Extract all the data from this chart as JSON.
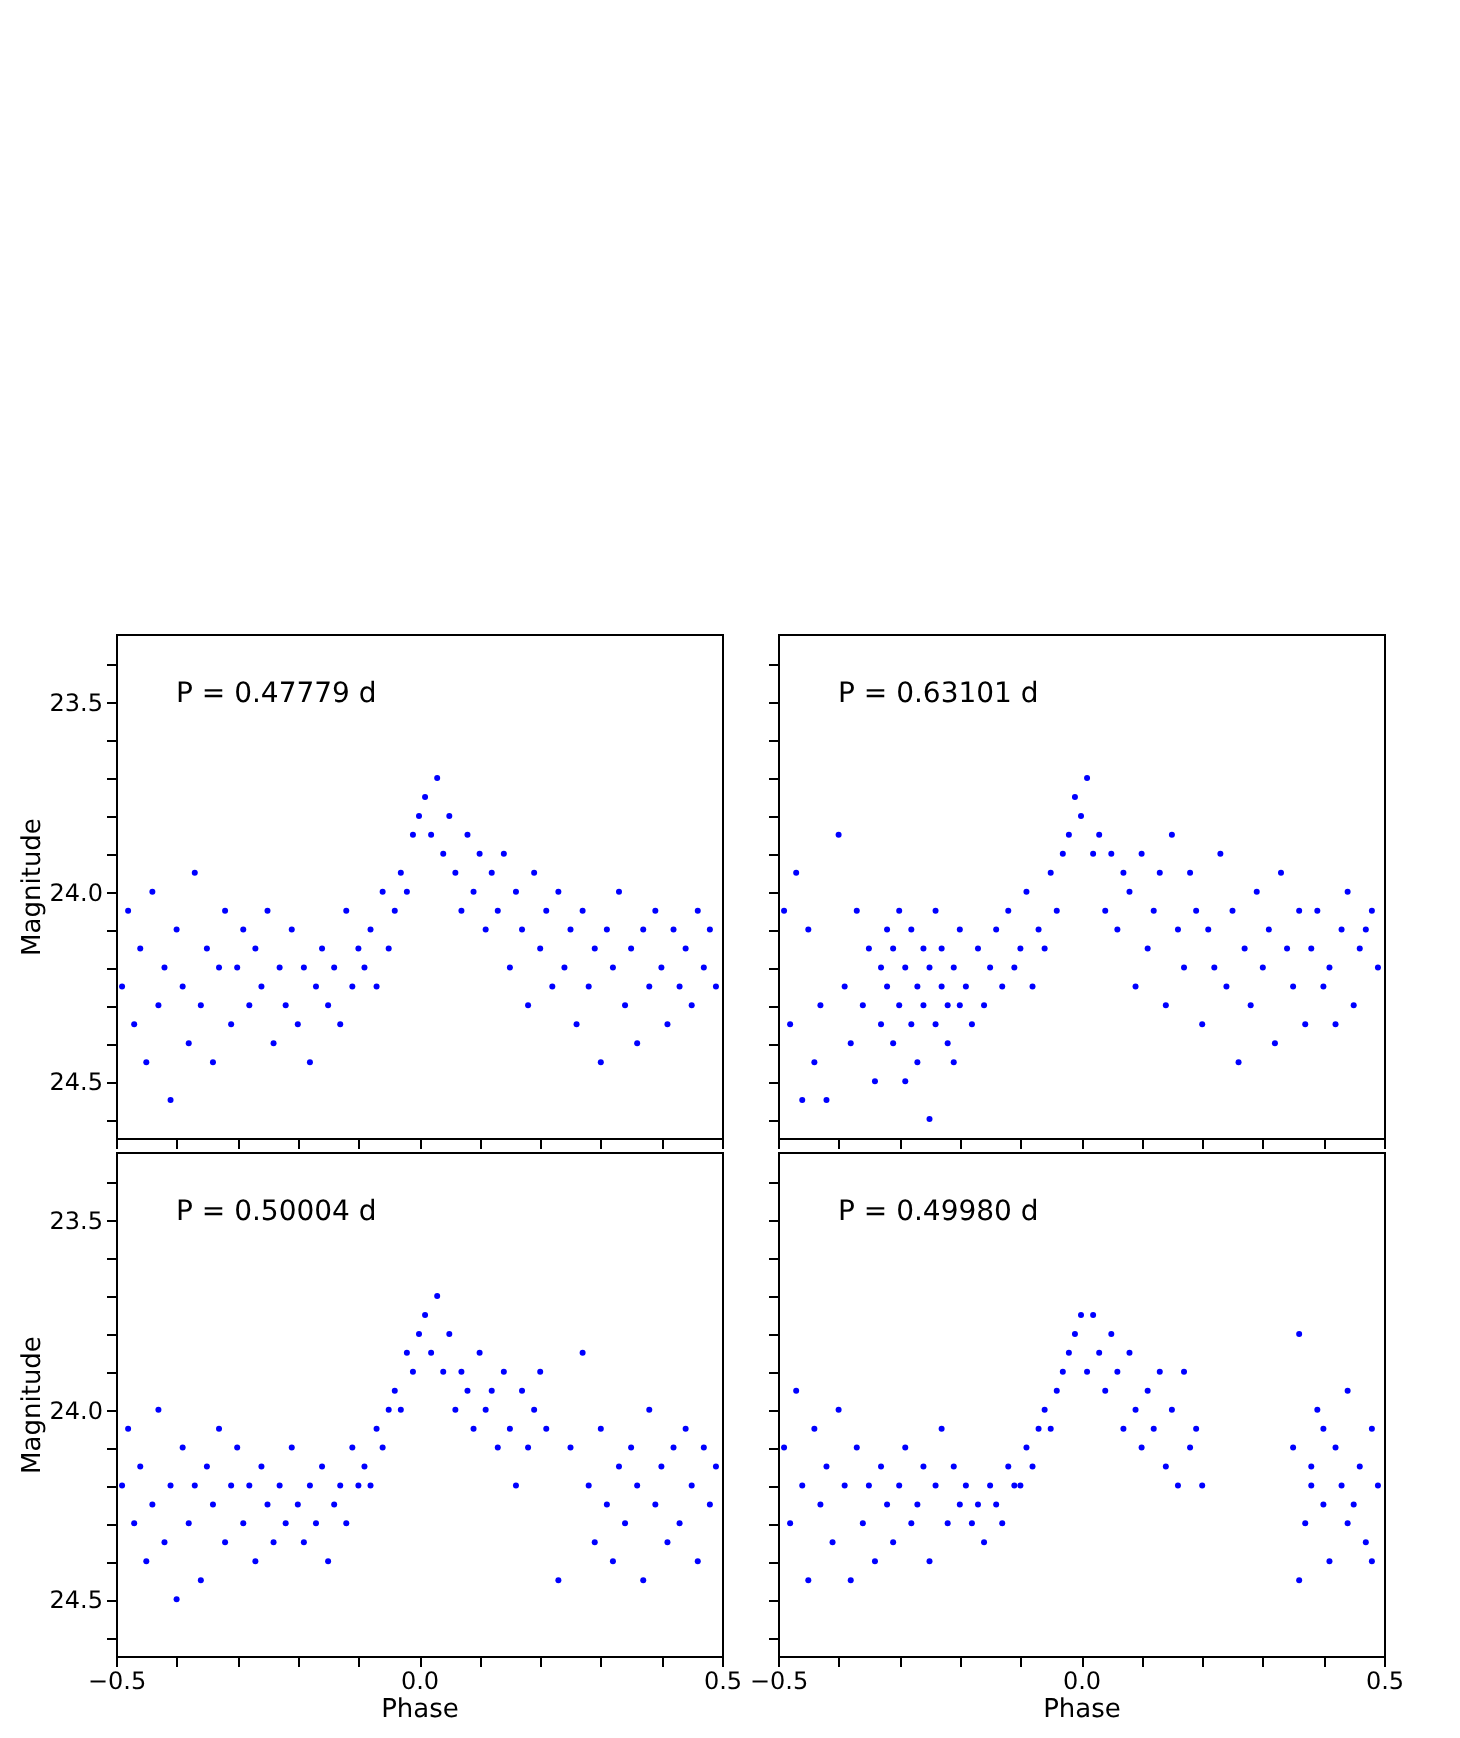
{
  "chart_data": [
    {
      "type": "scatter",
      "ylabel": "Magnitude",
      "annotations": [
        "P = 0.47779 d"
      ],
      "xlim": [
        -0.5,
        0.5
      ],
      "ylim": [
        24.65,
        23.32
      ],
      "tick_labels": "y",
      "marker": "circle",
      "xticks": [
        {
          "value": -0.5,
          "label": null
        },
        {
          "value": -0.4,
          "label": null
        },
        {
          "value": -0.3,
          "label": null
        },
        {
          "value": -0.2,
          "label": null
        },
        {
          "value": -0.1,
          "label": null
        },
        {
          "value": 0,
          "label": null
        },
        {
          "value": 0.1,
          "label": null
        },
        {
          "value": 0.2,
          "label": null
        },
        {
          "value": 0.3,
          "label": null
        },
        {
          "value": 0.4,
          "label": null
        },
        {
          "value": 0.5,
          "label": null
        }
      ],
      "yticks": [
        {
          "value": 23.4,
          "label": null
        },
        {
          "value": 23.5,
          "label": "23.5"
        },
        {
          "value": 23.6,
          "label": null
        },
        {
          "value": 23.7,
          "label": null
        },
        {
          "value": 23.8,
          "label": null
        },
        {
          "value": 23.9,
          "label": null
        },
        {
          "value": 24,
          "label": "24.0"
        },
        {
          "value": 24.1,
          "label": null
        },
        {
          "value": 24.2,
          "label": null
        },
        {
          "value": 24.3,
          "label": null
        },
        {
          "value": 24.4,
          "label": null
        },
        {
          "value": 24.5,
          "label": "24.5"
        },
        {
          "value": 24.6,
          "label": null
        }
      ],
      "series": [
        {
          "color": "#0000ff",
          "x": [
            -0.49,
            -0.48,
            -0.47,
            -0.46,
            -0.45,
            -0.44,
            -0.43,
            -0.42,
            -0.41,
            -0.4,
            -0.39,
            -0.38,
            -0.37,
            -0.36,
            -0.35,
            -0.34,
            -0.33,
            -0.32,
            -0.31,
            -0.3,
            -0.29,
            -0.28,
            -0.27,
            -0.26,
            -0.25,
            -0.24,
            -0.23,
            -0.22,
            -0.21,
            -0.2,
            -0.19,
            -0.18,
            -0.17,
            -0.16,
            -0.15,
            -0.14,
            -0.13,
            -0.12,
            -0.11,
            -0.1,
            -0.09,
            -0.08,
            -0.07,
            -0.06,
            -0.05,
            -0.04,
            -0.03,
            -0.02,
            -0.01,
            0.0,
            0.01,
            0.02,
            0.03,
            0.04,
            0.05,
            0.06,
            0.07,
            0.08,
            0.09,
            0.1,
            0.11,
            0.12,
            0.13,
            0.14,
            0.15,
            0.16,
            0.17,
            0.18,
            0.19,
            0.2,
            0.21,
            0.22,
            0.23,
            0.24,
            0.25,
            0.26,
            0.27,
            0.28,
            0.29,
            0.3,
            0.31,
            0.32,
            0.33,
            0.34,
            0.35,
            0.36,
            0.37,
            0.38,
            0.39,
            0.4,
            0.41,
            0.42,
            0.43,
            0.44,
            0.45,
            0.46,
            0.47,
            0.48,
            0.49
          ],
          "values": [
            24.25,
            24.05,
            24.35,
            24.15,
            24.45,
            24.0,
            24.3,
            24.2,
            24.55,
            24.1,
            24.25,
            24.4,
            23.95,
            24.3,
            24.15,
            24.45,
            24.2,
            24.05,
            24.35,
            24.2,
            24.1,
            24.3,
            24.15,
            24.25,
            24.05,
            24.4,
            24.2,
            24.3,
            24.1,
            24.35,
            24.2,
            24.45,
            24.25,
            24.15,
            24.3,
            24.2,
            24.35,
            24.05,
            24.25,
            24.15,
            24.2,
            24.1,
            24.25,
            24.0,
            24.15,
            24.05,
            23.95,
            24.0,
            23.85,
            23.8,
            23.75,
            23.85,
            23.7,
            23.9,
            23.8,
            23.95,
            24.05,
            23.85,
            24.0,
            23.9,
            24.1,
            23.95,
            24.05,
            23.9,
            24.2,
            24.0,
            24.1,
            24.3,
            23.95,
            24.15,
            24.05,
            24.25,
            24.0,
            24.2,
            24.1,
            24.35,
            24.05,
            24.25,
            24.15,
            24.45,
            24.1,
            24.2,
            24.0,
            24.3,
            24.15,
            24.4,
            24.1,
            24.25,
            24.05,
            24.2,
            24.35,
            24.1,
            24.25,
            24.15,
            24.3,
            24.05,
            24.2,
            24.1,
            24.25
          ]
        }
      ]
    },
    {
      "type": "scatter",
      "annotations": [
        "P = 0.63101 d"
      ],
      "xlim": [
        -0.5,
        0.5
      ],
      "ylim": [
        24.65,
        23.32
      ],
      "tick_labels": false,
      "marker": "circle",
      "xticks": [
        {
          "value": -0.5,
          "label": null
        },
        {
          "value": -0.4,
          "label": null
        },
        {
          "value": -0.3,
          "label": null
        },
        {
          "value": -0.2,
          "label": null
        },
        {
          "value": -0.1,
          "label": null
        },
        {
          "value": 0,
          "label": null
        },
        {
          "value": 0.1,
          "label": null
        },
        {
          "value": 0.2,
          "label": null
        },
        {
          "value": 0.3,
          "label": null
        },
        {
          "value": 0.4,
          "label": null
        },
        {
          "value": 0.5,
          "label": null
        }
      ],
      "yticks": [
        {
          "value": 23.4,
          "label": null
        },
        {
          "value": 23.5,
          "label": null
        },
        {
          "value": 23.6,
          "label": null
        },
        {
          "value": 23.7,
          "label": null
        },
        {
          "value": 23.8,
          "label": null
        },
        {
          "value": 23.9,
          "label": null
        },
        {
          "value": 24,
          "label": null
        },
        {
          "value": 24.1,
          "label": null
        },
        {
          "value": 24.2,
          "label": null
        },
        {
          "value": 24.3,
          "label": null
        },
        {
          "value": 24.4,
          "label": null
        },
        {
          "value": 24.5,
          "label": null
        },
        {
          "value": 24.6,
          "label": null
        }
      ],
      "series": [
        {
          "color": "#0000ff",
          "x": [
            -0.49,
            -0.48,
            -0.47,
            -0.46,
            -0.45,
            -0.44,
            -0.43,
            -0.42,
            -0.4,
            -0.39,
            -0.38,
            -0.37,
            -0.36,
            -0.35,
            -0.34,
            -0.33,
            -0.33,
            -0.32,
            -0.32,
            -0.31,
            -0.31,
            -0.3,
            -0.3,
            -0.29,
            -0.29,
            -0.28,
            -0.28,
            -0.27,
            -0.27,
            -0.26,
            -0.26,
            -0.25,
            -0.25,
            -0.24,
            -0.24,
            -0.23,
            -0.23,
            -0.22,
            -0.22,
            -0.21,
            -0.21,
            -0.2,
            -0.2,
            -0.19,
            -0.18,
            -0.17,
            -0.16,
            -0.15,
            -0.14,
            -0.13,
            -0.12,
            -0.11,
            -0.1,
            -0.09,
            -0.08,
            -0.07,
            -0.06,
            -0.05,
            -0.04,
            -0.03,
            -0.02,
            -0.01,
            0.0,
            0.01,
            0.02,
            0.03,
            0.04,
            0.05,
            0.06,
            0.07,
            0.08,
            0.09,
            0.1,
            0.11,
            0.12,
            0.13,
            0.14,
            0.15,
            0.16,
            0.17,
            0.18,
            0.19,
            0.2,
            0.21,
            0.22,
            0.23,
            0.24,
            0.25,
            0.26,
            0.27,
            0.28,
            0.29,
            0.3,
            0.31,
            0.32,
            0.33,
            0.34,
            0.35,
            0.36,
            0.37,
            0.38,
            0.39,
            0.4,
            0.41,
            0.42,
            0.43,
            0.44,
            0.45,
            0.46,
            0.47,
            0.48,
            0.49
          ],
          "values": [
            24.05,
            24.35,
            23.95,
            24.55,
            24.1,
            24.45,
            24.3,
            24.55,
            23.85,
            24.25,
            24.4,
            24.05,
            24.3,
            24.15,
            24.5,
            24.2,
            24.35,
            24.1,
            24.25,
            24.4,
            24.15,
            24.3,
            24.05,
            24.2,
            24.5,
            24.1,
            24.35,
            24.25,
            24.45,
            24.15,
            24.3,
            24.2,
            24.6,
            24.05,
            24.35,
            24.25,
            24.15,
            24.4,
            24.3,
            24.2,
            24.45,
            24.1,
            24.3,
            24.25,
            24.35,
            24.15,
            24.3,
            24.2,
            24.1,
            24.25,
            24.05,
            24.2,
            24.15,
            24.0,
            24.25,
            24.1,
            24.15,
            23.95,
            24.05,
            23.9,
            23.85,
            23.75,
            23.8,
            23.7,
            23.9,
            23.85,
            24.05,
            23.9,
            24.1,
            23.95,
            24.0,
            24.25,
            23.9,
            24.15,
            24.05,
            23.95,
            24.3,
            23.85,
            24.1,
            24.2,
            23.95,
            24.05,
            24.35,
            24.1,
            24.2,
            23.9,
            24.25,
            24.05,
            24.45,
            24.15,
            24.3,
            24.0,
            24.2,
            24.1,
            24.4,
            23.95,
            24.15,
            24.25,
            24.05,
            24.35,
            24.15,
            24.05,
            24.25,
            24.2,
            24.35,
            24.1,
            24.0,
            24.3,
            24.15,
            24.1,
            24.05,
            24.2
          ]
        }
      ]
    },
    {
      "type": "scatter",
      "xlabel": "Phase",
      "ylabel": "Magnitude",
      "annotations": [
        "P = 0.50004 d"
      ],
      "xlim": [
        -0.5,
        0.5
      ],
      "ylim": [
        24.65,
        23.32
      ],
      "marker": "circle",
      "xticks": [
        {
          "value": -0.5,
          "label": "−0.5"
        },
        {
          "value": -0.4,
          "label": null
        },
        {
          "value": -0.3,
          "label": null
        },
        {
          "value": -0.2,
          "label": null
        },
        {
          "value": -0.1,
          "label": null
        },
        {
          "value": 0,
          "label": "0.0"
        },
        {
          "value": 0.1,
          "label": null
        },
        {
          "value": 0.2,
          "label": null
        },
        {
          "value": 0.3,
          "label": null
        },
        {
          "value": 0.4,
          "label": null
        },
        {
          "value": 0.5,
          "label": "0.5"
        }
      ],
      "yticks": [
        {
          "value": 23.4,
          "label": null
        },
        {
          "value": 23.5,
          "label": "23.5"
        },
        {
          "value": 23.6,
          "label": null
        },
        {
          "value": 23.7,
          "label": null
        },
        {
          "value": 23.8,
          "label": null
        },
        {
          "value": 23.9,
          "label": null
        },
        {
          "value": 24,
          "label": "24.0"
        },
        {
          "value": 24.1,
          "label": null
        },
        {
          "value": 24.2,
          "label": null
        },
        {
          "value": 24.3,
          "label": null
        },
        {
          "value": 24.4,
          "label": null
        },
        {
          "value": 24.5,
          "label": "24.5"
        },
        {
          "value": 24.6,
          "label": null
        }
      ],
      "series": [
        {
          "color": "#0000ff",
          "x": [
            -0.49,
            -0.48,
            -0.47,
            -0.46,
            -0.45,
            -0.44,
            -0.43,
            -0.42,
            -0.41,
            -0.4,
            -0.39,
            -0.38,
            -0.37,
            -0.36,
            -0.35,
            -0.34,
            -0.33,
            -0.32,
            -0.31,
            -0.3,
            -0.29,
            -0.28,
            -0.27,
            -0.26,
            -0.25,
            -0.24,
            -0.23,
            -0.22,
            -0.21,
            -0.2,
            -0.19,
            -0.18,
            -0.17,
            -0.16,
            -0.15,
            -0.14,
            -0.13,
            -0.12,
            -0.11,
            -0.1,
            -0.09,
            -0.08,
            -0.07,
            -0.06,
            -0.05,
            -0.04,
            -0.03,
            -0.02,
            -0.01,
            0.0,
            0.01,
            0.02,
            0.03,
            0.04,
            0.05,
            0.06,
            0.07,
            0.08,
            0.09,
            0.1,
            0.11,
            0.12,
            0.13,
            0.14,
            0.15,
            0.16,
            0.17,
            0.18,
            0.19,
            0.2,
            0.21,
            0.23,
            0.25,
            0.27,
            0.28,
            0.29,
            0.3,
            0.31,
            0.32,
            0.33,
            0.34,
            0.35,
            0.36,
            0.37,
            0.38,
            0.39,
            0.4,
            0.41,
            0.42,
            0.43,
            0.44,
            0.45,
            0.46,
            0.47,
            0.48,
            0.49
          ],
          "values": [
            24.2,
            24.05,
            24.3,
            24.15,
            24.4,
            24.25,
            24.0,
            24.35,
            24.2,
            24.5,
            24.1,
            24.3,
            24.2,
            24.45,
            24.15,
            24.25,
            24.05,
            24.35,
            24.2,
            24.1,
            24.3,
            24.2,
            24.4,
            24.15,
            24.25,
            24.35,
            24.2,
            24.3,
            24.1,
            24.25,
            24.35,
            24.2,
            24.3,
            24.15,
            24.4,
            24.25,
            24.2,
            24.3,
            24.1,
            24.2,
            24.15,
            24.2,
            24.05,
            24.1,
            24.0,
            23.95,
            24.0,
            23.85,
            23.9,
            23.8,
            23.75,
            23.85,
            23.7,
            23.9,
            23.8,
            24.0,
            23.9,
            23.95,
            24.05,
            23.85,
            24.0,
            23.95,
            24.1,
            23.9,
            24.05,
            24.2,
            23.95,
            24.1,
            24.0,
            23.9,
            24.05,
            24.45,
            24.1,
            23.85,
            24.2,
            24.35,
            24.05,
            24.25,
            24.4,
            24.15,
            24.3,
            24.1,
            24.2,
            24.45,
            24.0,
            24.25,
            24.15,
            24.35,
            24.1,
            24.3,
            24.05,
            24.2,
            24.4,
            24.1,
            24.25,
            24.15
          ]
        }
      ]
    },
    {
      "type": "scatter",
      "xlabel": "Phase",
      "annotations": [
        "P = 0.49980 d"
      ],
      "xlim": [
        -0.5,
        0.5
      ],
      "ylim": [
        24.65,
        23.32
      ],
      "tick_labels": "x",
      "marker": "circle",
      "xticks": [
        {
          "value": -0.5,
          "label": "−0.5"
        },
        {
          "value": -0.4,
          "label": null
        },
        {
          "value": -0.3,
          "label": null
        },
        {
          "value": -0.2,
          "label": null
        },
        {
          "value": -0.1,
          "label": null
        },
        {
          "value": 0,
          "label": "0.0"
        },
        {
          "value": 0.1,
          "label": null
        },
        {
          "value": 0.2,
          "label": null
        },
        {
          "value": 0.3,
          "label": null
        },
        {
          "value": 0.4,
          "label": null
        },
        {
          "value": 0.5,
          "label": "0.5"
        }
      ],
      "yticks": [
        {
          "value": 23.4,
          "label": null
        },
        {
          "value": 23.5,
          "label": null
        },
        {
          "value": 23.6,
          "label": null
        },
        {
          "value": 23.7,
          "label": null
        },
        {
          "value": 23.8,
          "label": null
        },
        {
          "value": 23.9,
          "label": null
        },
        {
          "value": 24,
          "label": null
        },
        {
          "value": 24.1,
          "label": null
        },
        {
          "value": 24.2,
          "label": null
        },
        {
          "value": 24.3,
          "label": null
        },
        {
          "value": 24.4,
          "label": null
        },
        {
          "value": 24.5,
          "label": null
        },
        {
          "value": 24.6,
          "label": null
        }
      ],
      "series": [
        {
          "color": "#0000ff",
          "x": [
            -0.49,
            -0.48,
            -0.47,
            -0.46,
            -0.45,
            -0.44,
            -0.43,
            -0.42,
            -0.41,
            -0.4,
            -0.39,
            -0.38,
            -0.37,
            -0.36,
            -0.35,
            -0.34,
            -0.33,
            -0.32,
            -0.31,
            -0.3,
            -0.29,
            -0.28,
            -0.27,
            -0.26,
            -0.25,
            -0.24,
            -0.23,
            -0.22,
            -0.21,
            -0.2,
            -0.19,
            -0.18,
            -0.17,
            -0.16,
            -0.15,
            -0.14,
            -0.13,
            -0.12,
            -0.11,
            -0.1,
            -0.09,
            -0.08,
            -0.07,
            -0.06,
            -0.05,
            -0.04,
            -0.03,
            -0.02,
            -0.01,
            0.0,
            0.01,
            0.02,
            0.03,
            0.04,
            0.05,
            0.06,
            0.07,
            0.08,
            0.09,
            0.1,
            0.11,
            0.12,
            0.13,
            0.14,
            0.15,
            0.16,
            0.17,
            0.18,
            0.19,
            0.2,
            0.35,
            0.36,
            0.37,
            0.38,
            0.39,
            0.4,
            0.41,
            0.42,
            0.43,
            0.44,
            0.45,
            0.46,
            0.47,
            0.48,
            0.49,
            0.36,
            0.4,
            0.44,
            0.48,
            0.38
          ],
          "values": [
            24.1,
            24.3,
            23.95,
            24.2,
            24.45,
            24.05,
            24.25,
            24.15,
            24.35,
            24.0,
            24.2,
            24.45,
            24.1,
            24.3,
            24.2,
            24.4,
            24.15,
            24.25,
            24.35,
            24.2,
            24.1,
            24.3,
            24.25,
            24.15,
            24.4,
            24.2,
            24.05,
            24.3,
            24.15,
            24.25,
            24.2,
            24.3,
            24.25,
            24.35,
            24.2,
            24.25,
            24.3,
            24.15,
            24.2,
            24.2,
            24.1,
            24.15,
            24.05,
            24.0,
            24.05,
            23.95,
            23.9,
            23.85,
            23.8,
            23.75,
            23.9,
            23.75,
            23.85,
            23.95,
            23.8,
            23.9,
            24.05,
            23.85,
            24.0,
            24.1,
            23.95,
            24.05,
            23.9,
            24.15,
            24.0,
            24.2,
            23.9,
            24.1,
            24.05,
            24.2,
            24.1,
            23.8,
            24.3,
            24.15,
            24.0,
            24.25,
            24.4,
            24.1,
            24.2,
            23.95,
            24.25,
            24.15,
            24.35,
            24.05,
            24.2,
            24.45,
            24.05,
            24.3,
            24.4,
            24.2
          ]
        }
      ]
    }
  ]
}
